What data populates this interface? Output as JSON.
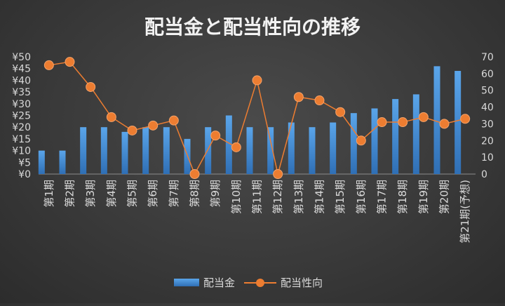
{
  "chart_data": {
    "type": "bar",
    "title": "配当金と配当性向の推移",
    "categories": [
      "第1期",
      "第2期",
      "第3期",
      "第4期",
      "第5期",
      "第6期",
      "第7期",
      "第8期",
      "第9期",
      "第10期",
      "第11期",
      "第12期",
      "第13期",
      "第14期",
      "第15期",
      "第16期",
      "第17期",
      "第18期",
      "第19期",
      "第20期",
      "第21期(予想)"
    ],
    "series": [
      {
        "name": "配当金",
        "type": "bar",
        "axis": "left",
        "color": "#4a90d9",
        "values": [
          10,
          10,
          20,
          20,
          18,
          20,
          20,
          15,
          20,
          25,
          20,
          20,
          22,
          20,
          22,
          26,
          28,
          32,
          34,
          46,
          44
        ]
      },
      {
        "name": "配当性向",
        "type": "line",
        "axis": "right",
        "color": "#ed7d31",
        "values": [
          65,
          67,
          52,
          34,
          26,
          29,
          32,
          0,
          23,
          16,
          56,
          0,
          46,
          44,
          37,
          20,
          31,
          31,
          34,
          30,
          33
        ]
      }
    ],
    "y_left": {
      "min": 0,
      "max": 50,
      "step": 5,
      "tick_labels": [
        "¥0",
        "¥5",
        "¥10",
        "¥15",
        "¥20",
        "¥25",
        "¥30",
        "¥35",
        "¥40",
        "¥45",
        "¥50"
      ]
    },
    "y_right": {
      "min": 0,
      "max": 70,
      "step": 10,
      "tick_labels": [
        "0",
        "10",
        "20",
        "30",
        "40",
        "50",
        "60",
        "70"
      ]
    },
    "grid": false,
    "legend_position": "bottom"
  }
}
